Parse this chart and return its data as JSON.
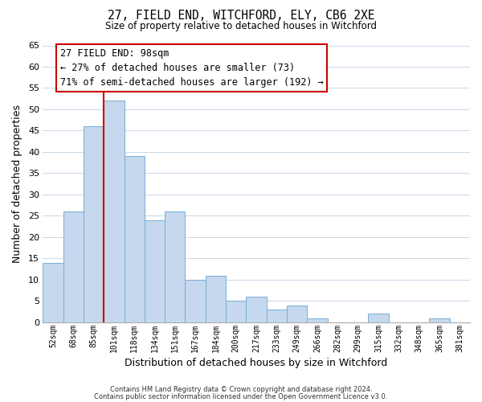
{
  "title": "27, FIELD END, WITCHFORD, ELY, CB6 2XE",
  "subtitle": "Size of property relative to detached houses in Witchford",
  "xlabel": "Distribution of detached houses by size in Witchford",
  "ylabel": "Number of detached properties",
  "bar_labels": [
    "52sqm",
    "68sqm",
    "85sqm",
    "101sqm",
    "118sqm",
    "134sqm",
    "151sqm",
    "167sqm",
    "184sqm",
    "200sqm",
    "217sqm",
    "233sqm",
    "249sqm",
    "266sqm",
    "282sqm",
    "299sqm",
    "315sqm",
    "332sqm",
    "348sqm",
    "365sqm",
    "381sqm"
  ],
  "bar_values": [
    14,
    26,
    46,
    52,
    39,
    24,
    26,
    10,
    11,
    5,
    6,
    3,
    4,
    1,
    0,
    0,
    2,
    0,
    0,
    1,
    0
  ],
  "bar_color": "#c5d8ed",
  "bar_edge_color": "#7aadd4",
  "ylim": [
    0,
    65
  ],
  "yticks": [
    0,
    5,
    10,
    15,
    20,
    25,
    30,
    35,
    40,
    45,
    50,
    55,
    60,
    65
  ],
  "property_line_x": 3,
  "property_line_color": "#cc0000",
  "annotation_title": "27 FIELD END: 98sqm",
  "annotation_line1": "← 27% of detached houses are smaller (73)",
  "annotation_line2": "71% of semi-detached houses are larger (192) →",
  "annotation_box_color": "#ffffff",
  "annotation_box_edge": "#cc0000",
  "footer_line1": "Contains HM Land Registry data © Crown copyright and database right 2024.",
  "footer_line2": "Contains public sector information licensed under the Open Government Licence v3.0.",
  "background_color": "#ffffff",
  "grid_color": "#c8d8e8"
}
